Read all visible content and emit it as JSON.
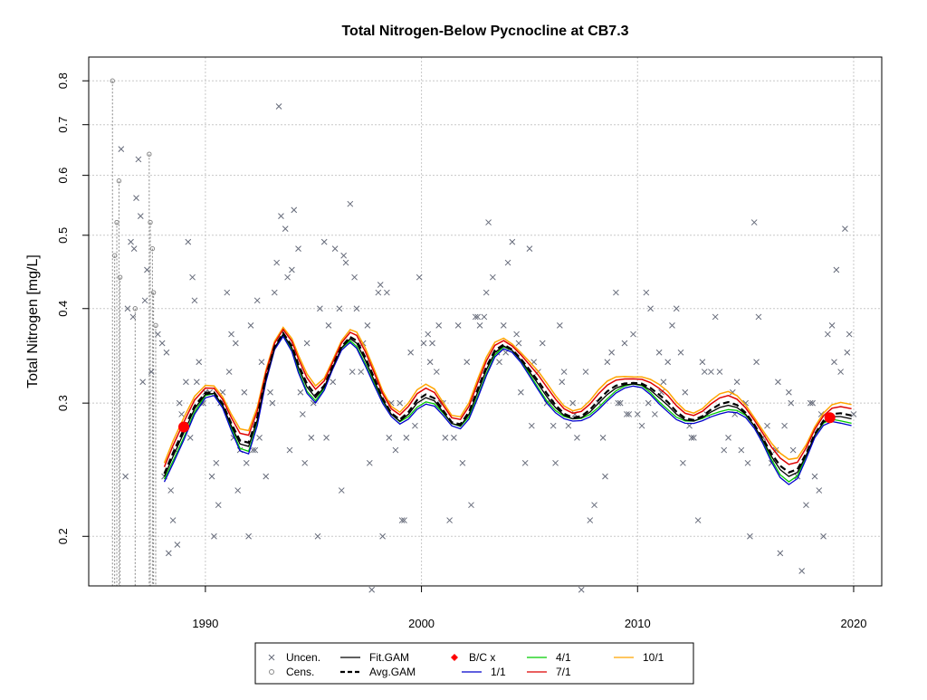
{
  "chart_data": {
    "type": "scatter",
    "title": "Total Nitrogen-Below Pycnocline at CB7.3",
    "xlabel": "",
    "ylabel": "Total Nitrogen [mg/L]",
    "y_scale": "log",
    "xlim": [
      1984.6,
      2021.3
    ],
    "ylim": [
      0.172,
      0.86
    ],
    "x_ticks": [
      1990,
      2000,
      2010,
      2020
    ],
    "x_tick_labels": [
      "1990",
      "2000",
      "2010",
      "2020"
    ],
    "y_ticks": [
      0.2,
      0.3,
      0.4,
      0.5,
      0.6,
      0.7,
      0.8
    ],
    "y_tick_labels": [
      "0.2",
      "0.3",
      "0.4",
      "0.5",
      "0.6",
      "0.7",
      "0.8"
    ],
    "grid": true,
    "legend_position": "bottom",
    "legend": [
      {
        "label": "Uncen.",
        "symbol": "x",
        "color": "#666b7a"
      },
      {
        "label": "Cens.",
        "symbol": "o",
        "color": "#888888"
      },
      {
        "label": "Fit.GAM",
        "symbol": "line",
        "color": "#000000"
      },
      {
        "label": "Avg.GAM",
        "symbol": "dashed",
        "color": "#000000"
      },
      {
        "label": "B/C x",
        "symbol": "diamond",
        "color": "#ff0000"
      },
      {
        "label": "1/1",
        "symbol": "line",
        "color": "#0000cc"
      },
      {
        "label": "4/1",
        "symbol": "line",
        "color": "#00cc00"
      },
      {
        "label": "7/1",
        "symbol": "line",
        "color": "#dd0000"
      },
      {
        "label": "10/1",
        "symbol": "line",
        "color": "#ffa500"
      }
    ],
    "colors": {
      "uncensored": "#666b7a",
      "censored": "#888888",
      "fit_gam": "#000000",
      "avg_gam": "#000000",
      "bc": "#ff0000",
      "s1_1": "#0000cc",
      "s4_1": "#00cc00",
      "s7_1": "#dd0000",
      "s10_1": "#ffa500",
      "grid": "#c8c8c8"
    },
    "bc_points": [
      {
        "x": 1989.0,
        "y": 0.279
      },
      {
        "x": 2018.9,
        "y": 0.287
      }
    ],
    "censored": [
      {
        "x": 1985.7,
        "lo": 0.172,
        "hi": 0.8
      },
      {
        "x": 1985.8,
        "lo": 0.172,
        "hi": 0.47
      },
      {
        "x": 1985.9,
        "lo": 0.172,
        "hi": 0.52
      },
      {
        "x": 1986.0,
        "lo": 0.172,
        "hi": 0.59
      },
      {
        "x": 1986.05,
        "lo": 0.172,
        "hi": 0.44
      },
      {
        "x": 1986.75,
        "lo": 0.172,
        "hi": 0.4
      },
      {
        "x": 1987.4,
        "lo": 0.172,
        "hi": 0.64
      },
      {
        "x": 1987.45,
        "lo": 0.172,
        "hi": 0.52
      },
      {
        "x": 1987.55,
        "lo": 0.172,
        "hi": 0.48
      },
      {
        "x": 1987.6,
        "lo": 0.172,
        "hi": 0.42
      },
      {
        "x": 1987.7,
        "lo": 0.172,
        "hi": 0.38
      }
    ],
    "uncensored_x": [
      1986.1,
      1986.4,
      1986.55,
      1986.65,
      1986.7,
      1986.8,
      1986.9,
      1987.0,
      1987.2,
      1987.3,
      1987.5,
      1987.8,
      1988.0,
      1988.2,
      1988.3,
      1988.4,
      1988.5,
      1988.6,
      1988.7,
      1988.8,
      1988.9,
      1989.1,
      1989.2,
      1989.3,
      1989.4,
      1989.5,
      1989.6,
      1989.7,
      1989.8,
      1990.0,
      1990.2,
      1990.3,
      1990.4,
      1990.5,
      1990.7,
      1990.8,
      1991.0,
      1991.1,
      1991.2,
      1991.4,
      1991.5,
      1991.6,
      1991.8,
      1992.0,
      1992.1,
      1992.3,
      1992.4,
      1992.5,
      1992.6,
      1992.8,
      1993.0,
      1993.2,
      1993.3,
      1993.4,
      1993.5,
      1993.7,
      1993.8,
      1994.0,
      1994.1,
      1994.3,
      1994.4,
      1994.5,
      1994.7,
      1994.9,
      1995.0,
      1995.2,
      1995.3,
      1995.5,
      1995.7,
      1995.9,
      1996.0,
      1996.2,
      1996.4,
      1996.5,
      1996.7,
      1996.9,
      1997.0,
      1997.2,
      1997.3,
      1997.5,
      1997.7,
      1997.9,
      1998.1,
      1998.2,
      1998.4,
      1998.6,
      1998.8,
      1999.0,
      1999.1,
      1999.3,
      1999.5,
      1999.7,
      1999.9,
      2000.1,
      2000.3,
      2000.5,
      2000.7,
      2000.9,
      2001.1,
      2001.3,
      2001.5,
      2001.7,
      2001.9,
      2002.1,
      2002.3,
      2002.5,
      2002.7,
      2002.9,
      2003.1,
      2003.3,
      2003.5,
      2003.6,
      2003.8,
      2004.0,
      2004.2,
      2004.4,
      2004.6,
      2004.8,
      2005.0,
      2005.2,
      2005.4,
      2005.6,
      2005.8,
      2006.0,
      2006.2,
      2006.4,
      2006.6,
      2006.8,
      2007.0,
      2007.2,
      2007.4,
      2007.6,
      2007.8,
      2008.0,
      2008.2,
      2008.4,
      2008.6,
      2008.8,
      2009.0,
      2009.2,
      2009.4,
      2009.6,
      2009.8,
      2010.0,
      2010.2,
      2010.4,
      2010.6,
      2010.8,
      2011.0,
      2011.2,
      2011.4,
      2011.6,
      2011.8,
      2012.0,
      2012.2,
      2012.4,
      2012.6,
      2012.8,
      2013.0,
      2013.2,
      2013.4,
      2013.6,
      2013.8,
      2014.0,
      2014.2,
      2014.4,
      2014.6,
      2014.8,
      2015.0,
      2015.2,
      2015.4,
      2015.6,
      2015.8,
      2016.0,
      2016.2,
      2016.4,
      2016.6,
      2016.8,
      2017.0,
      2017.2,
      2017.4,
      2017.6,
      2017.8,
      2018.0,
      2018.2,
      2018.4,
      2018.6,
      2018.8,
      2019.0,
      2019.2,
      2019.4,
      2019.6,
      2019.8,
      2020.0,
      1990.6,
      1991.9,
      1993.1,
      1995.6,
      1997.6,
      1999.2,
      2001.0,
      2003.0,
      2005.1,
      2007.1,
      2009.1,
      2011.1,
      2013.1,
      2015.1,
      2017.1,
      2019.1,
      1988.1,
      1989.9,
      1992.2,
      1994.6,
      1996.3,
      1998.5,
      2000.4,
      2002.6,
      2004.5,
      2006.5,
      2008.5,
      2010.5,
      2012.5,
      2014.5,
      2016.5,
      2018.5,
      1986.3,
      1987.1,
      1991.3,
      1993.9,
      1996.8,
      1998.0,
      2000.8,
      2003.9,
      2006.1,
      2009.5,
      2012.1,
      2015.5,
      2018.1,
      2019.7
    ],
    "uncensored_y": [
      0.65,
      0.4,
      0.49,
      0.39,
      0.48,
      0.56,
      0.63,
      0.53,
      0.41,
      0.45,
      0.33,
      0.37,
      0.36,
      0.35,
      0.19,
      0.23,
      0.21,
      0.26,
      0.195,
      0.3,
      0.29,
      0.32,
      0.49,
      0.27,
      0.44,
      0.41,
      0.32,
      0.34,
      0.3,
      0.31,
      0.31,
      0.24,
      0.2,
      0.25,
      0.3,
      0.31,
      0.42,
      0.33,
      0.37,
      0.36,
      0.23,
      0.26,
      0.31,
      0.2,
      0.38,
      0.26,
      0.41,
      0.27,
      0.34,
      0.24,
      0.31,
      0.42,
      0.46,
      0.74,
      0.53,
      0.51,
      0.44,
      0.45,
      0.54,
      0.48,
      0.31,
      0.29,
      0.36,
      0.27,
      0.3,
      0.2,
      0.4,
      0.49,
      0.38,
      0.32,
      0.48,
      0.4,
      0.47,
      0.46,
      0.55,
      0.44,
      0.4,
      0.33,
      0.36,
      0.38,
      0.17,
      0.32,
      0.43,
      0.2,
      0.42,
      0.3,
      0.26,
      0.3,
      0.21,
      0.27,
      0.35,
      0.28,
      0.44,
      0.36,
      0.37,
      0.36,
      0.33,
      0.3,
      0.27,
      0.21,
      0.27,
      0.38,
      0.25,
      0.34,
      0.22,
      0.39,
      0.38,
      0.39,
      0.52,
      0.44,
      0.35,
      0.34,
      0.38,
      0.46,
      0.49,
      0.37,
      0.31,
      0.25,
      0.48,
      0.34,
      0.33,
      0.36,
      0.3,
      0.3,
      0.25,
      0.38,
      0.33,
      0.28,
      0.3,
      0.27,
      0.17,
      0.33,
      0.21,
      0.22,
      0.3,
      0.27,
      0.34,
      0.35,
      0.42,
      0.3,
      0.36,
      0.29,
      0.37,
      0.29,
      0.28,
      0.42,
      0.4,
      0.29,
      0.35,
      0.32,
      0.34,
      0.38,
      0.4,
      0.35,
      0.31,
      0.28,
      0.27,
      0.21,
      0.34,
      0.29,
      0.33,
      0.39,
      0.33,
      0.26,
      0.27,
      0.31,
      0.32,
      0.26,
      0.3,
      0.2,
      0.52,
      0.39,
      0.27,
      0.28,
      0.25,
      0.26,
      0.19,
      0.28,
      0.31,
      0.26,
      0.24,
      0.18,
      0.22,
      0.3,
      0.24,
      0.23,
      0.2,
      0.37,
      0.38,
      0.45,
      0.33,
      0.51,
      0.37,
      0.29,
      0.22,
      0.25,
      0.3,
      0.27,
      0.25,
      0.21,
      0.3,
      0.42,
      0.28,
      0.29,
      0.3,
      0.31,
      0.33,
      0.25,
      0.3,
      0.34,
      0.24,
      0.3,
      0.26,
      0.25,
      0.23,
      0.27,
      0.34,
      0.39,
      0.36,
      0.32,
      0.24,
      0.3,
      0.27,
      0.29,
      0.32,
      0.29,
      0.24,
      0.32,
      0.27,
      0.26,
      0.33,
      0.42,
      0.38,
      0.35,
      0.28,
      0.29,
      0.25,
      0.34,
      0.3,
      0.35,
      0.31,
      0.25,
      0.17
    ],
    "fit_gam": {
      "x": [
        1988.1,
        1988.5,
        1989.0,
        1989.5,
        1990.0,
        1990.4,
        1990.8,
        1991.2,
        1991.6,
        1992.0,
        1992.4,
        1992.8,
        1993.2,
        1993.6,
        1994.0,
        1994.3,
        1994.7,
        1995.1,
        1995.5,
        1995.9,
        1996.3,
        1996.7,
        1997.0,
        1997.4,
        1997.8,
        1998.2,
        1998.6,
        1999.0,
        1999.4,
        1999.8,
        2000.2,
        2000.6,
        2001.0,
        2001.4,
        2001.8,
        2002.2,
        2002.6,
        2003.0,
        2003.4,
        2003.8,
        2004.2,
        2004.6,
        2005.0,
        2005.4,
        2005.8,
        2006.2,
        2006.6,
        2007.0,
        2007.4,
        2007.8,
        2008.2,
        2008.6,
        2009.0,
        2009.4,
        2009.8,
        2010.2,
        2010.6,
        2011.0,
        2011.4,
        2011.8,
        2012.2,
        2012.6,
        2013.0,
        2013.4,
        2013.8,
        2014.2,
        2014.6,
        2015.0,
        2015.4,
        2015.8,
        2016.2,
        2016.6,
        2017.0,
        2017.4,
        2017.8,
        2018.2,
        2018.6,
        2019.0,
        2019.4,
        2019.9
      ],
      "y": [
        0.24,
        0.255,
        0.274,
        0.295,
        0.308,
        0.309,
        0.298,
        0.28,
        0.265,
        0.263,
        0.285,
        0.323,
        0.355,
        0.37,
        0.355,
        0.335,
        0.315,
        0.305,
        0.315,
        0.335,
        0.355,
        0.365,
        0.36,
        0.342,
        0.322,
        0.303,
        0.29,
        0.284,
        0.29,
        0.3,
        0.305,
        0.302,
        0.292,
        0.282,
        0.28,
        0.29,
        0.31,
        0.332,
        0.35,
        0.357,
        0.352,
        0.342,
        0.33,
        0.318,
        0.306,
        0.296,
        0.289,
        0.286,
        0.287,
        0.292,
        0.3,
        0.308,
        0.314,
        0.317,
        0.318,
        0.317,
        0.312,
        0.305,
        0.298,
        0.29,
        0.285,
        0.284,
        0.287,
        0.292,
        0.296,
        0.298,
        0.296,
        0.29,
        0.28,
        0.268,
        0.255,
        0.245,
        0.24,
        0.243,
        0.256,
        0.272,
        0.283,
        0.288,
        0.288,
        0.286
      ]
    },
    "offsets": {
      "avg_gam": 0.0,
      "s1_1": -0.004,
      "s4_1": -0.002,
      "s7_1": 0.007,
      "s10_1": 0.01
    }
  }
}
